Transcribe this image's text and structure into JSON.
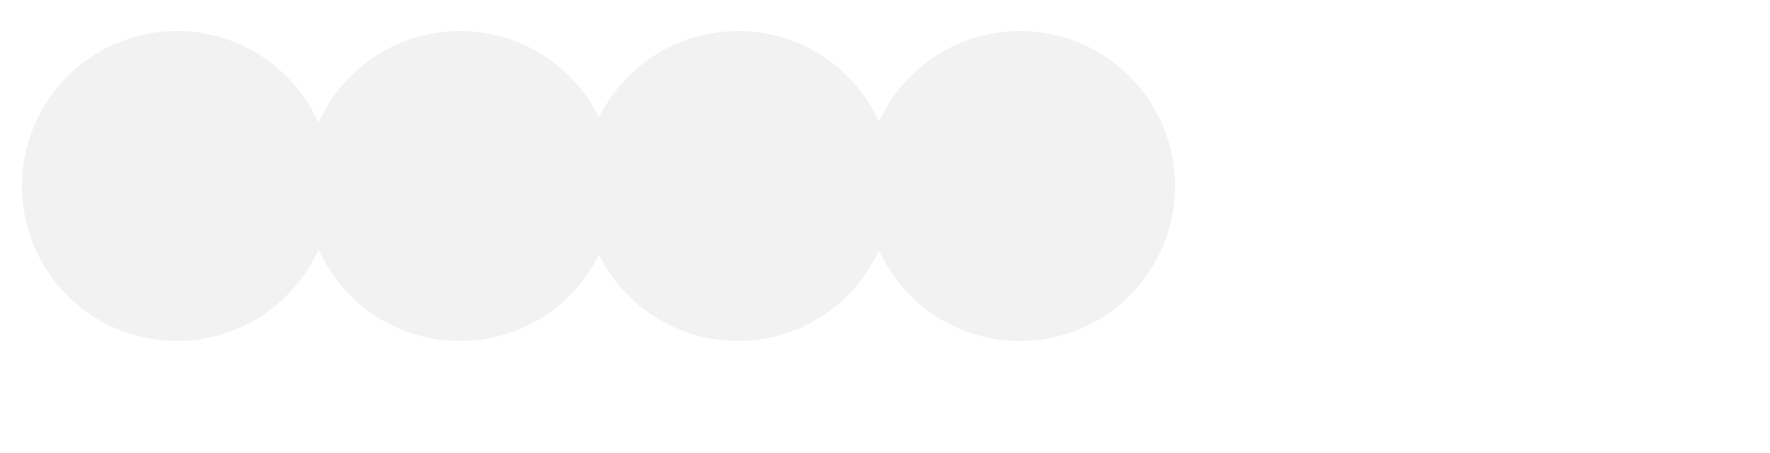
{
  "placeholder_dots": {
    "count": 4,
    "fill_color": "#f2f2f2",
    "background_color": "#ffffff",
    "items": [
      {
        "state": "empty"
      },
      {
        "state": "empty"
      },
      {
        "state": "empty"
      },
      {
        "state": "empty"
      }
    ]
  }
}
